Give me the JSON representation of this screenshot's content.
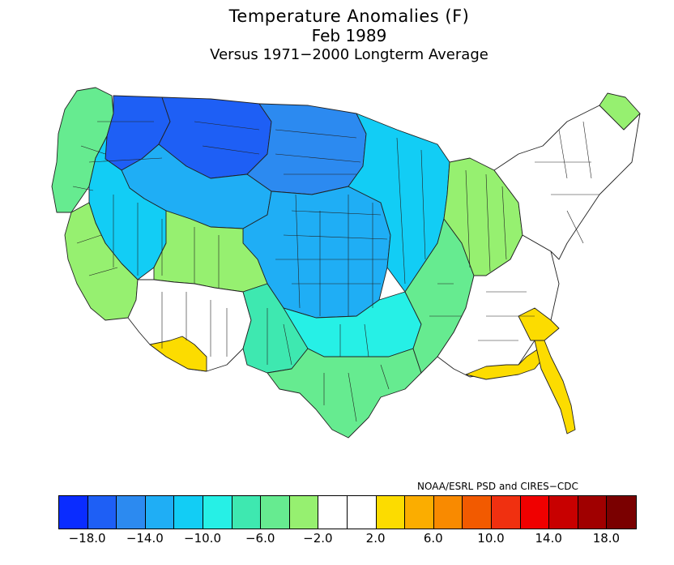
{
  "title": "Temperature Anomalies (F)",
  "subtitle": "Feb 1989",
  "subtitle2": "Versus 1971−2000 Longterm Average",
  "credit": "NOAA/ESRL PSD and CIRES−CDC",
  "legend": {
    "colors": [
      "#0a2cff",
      "#1e5ff5",
      "#2c8af0",
      "#1faef5",
      "#12cdf5",
      "#26f0e6",
      "#3ee8b0",
      "#66eb90",
      "#96f070",
      "#ffffff",
      "#ffffff",
      "#fcdc00",
      "#fbad00",
      "#f98a00",
      "#f25a00",
      "#f03010",
      "#f00000",
      "#c80000",
      "#a00000",
      "#7a0000"
    ],
    "ticks": [
      "−18.0",
      "−14.0",
      "−10.0",
      "−6.0",
      "−2.0",
      "2.0",
      "6.0",
      "10.0",
      "14.0",
      "18.0"
    ]
  },
  "regions": [
    {
      "name": "northwest-coast",
      "color": "#66eb90"
    },
    {
      "name": "northern-rockies",
      "color": "#1e5ff5"
    },
    {
      "name": "montana-north",
      "color": "#1e5ff5"
    },
    {
      "name": "northern-plains",
      "color": "#2c8af0"
    },
    {
      "name": "idaho-wyoming",
      "color": "#1faef5"
    },
    {
      "name": "great-basin",
      "color": "#12cdf5"
    },
    {
      "name": "central-plains",
      "color": "#1faef5"
    },
    {
      "name": "upper-midwest",
      "color": "#12cdf5"
    },
    {
      "name": "california",
      "color": "#96f070"
    },
    {
      "name": "utah-colorado-west",
      "color": "#96f070"
    },
    {
      "name": "desert-southwest",
      "color": "#ffffff"
    },
    {
      "name": "arizona-warm",
      "color": "#fcdc00"
    },
    {
      "name": "new-mexico-east",
      "color": "#3ee8b0"
    },
    {
      "name": "southern-plains",
      "color": "#26f0e6"
    },
    {
      "name": "texas",
      "color": "#66eb90"
    },
    {
      "name": "mississippi-valley",
      "color": "#66eb90"
    },
    {
      "name": "ohio-valley-lakes",
      "color": "#96f070"
    },
    {
      "name": "southeast",
      "color": "#ffffff"
    },
    {
      "name": "northeast",
      "color": "#ffffff"
    },
    {
      "name": "maine",
      "color": "#96f070"
    },
    {
      "name": "carolinas-warm",
      "color": "#fcdc00"
    },
    {
      "name": "gulf-coast-warm",
      "color": "#fcdc00"
    },
    {
      "name": "florida-east-warm",
      "color": "#fcdc00"
    }
  ]
}
